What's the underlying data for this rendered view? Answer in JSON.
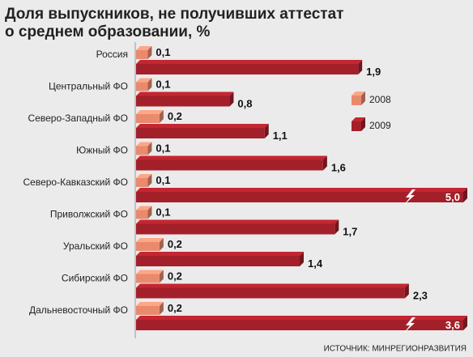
{
  "chart_data": {
    "type": "bar3d",
    "orientation": "horizontal",
    "title": [
      "Доля выпускников, не получивших аттестат",
      "о среднем образовании, %"
    ],
    "source": "ИСТОЧНИК: МИНРЕГИОНРАЗВИТИЯ",
    "categories": [
      "Россия",
      "Центральный ФО",
      "Северо-Западный ФО",
      "Южный ФО",
      "Северо-Кавказский ФО",
      "Приволжский ФО",
      "Уральский ФО",
      "Сибирский ФО",
      "Дальневосточный ФО"
    ],
    "series": [
      {
        "name": "2008",
        "color": "#e98a6f",
        "values": [
          0.1,
          0.1,
          0.2,
          0.1,
          0.1,
          0.1,
          0.2,
          0.2,
          0.2
        ],
        "value_labels": [
          "0,1",
          "0,1",
          "0,2",
          "0,1",
          "0,1",
          "0,1",
          "0,2",
          "0,2",
          "0,2"
        ]
      },
      {
        "name": "2009",
        "color": "#a3202a",
        "values": [
          1.9,
          0.8,
          1.1,
          1.6,
          5.0,
          1.7,
          1.4,
          2.3,
          3.6
        ],
        "value_labels": [
          "1,9",
          "0,8",
          "1,1",
          "1,6",
          "5,0",
          "1,7",
          "1,4",
          "2,3",
          "3,6"
        ]
      }
    ],
    "xlim": [
      0,
      2.8
    ],
    "legend": "right"
  }
}
